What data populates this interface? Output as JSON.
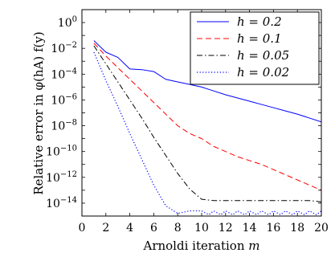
{
  "chart_data": {
    "type": "line",
    "xlabel": "Arnoldi iteration m",
    "ylabel": "Relative error in φ(hA) f(y)",
    "xlim": [
      0,
      20
    ],
    "ylim_exponent": [
      -15,
      1
    ],
    "yscale": "log",
    "xticks": [
      0,
      2,
      4,
      6,
      8,
      10,
      12,
      14,
      16,
      18,
      20
    ],
    "yticks": [
      -14,
      -12,
      -10,
      -8,
      -6,
      -4,
      -2,
      0
    ],
    "legend_position": "top-right",
    "grid": false,
    "series": [
      {
        "name": "h = 0.2",
        "color": "#0000ff",
        "dash": "solid",
        "x": [
          1,
          2,
          3,
          4,
          5,
          6,
          7,
          8,
          9,
          10,
          11,
          12,
          13,
          14,
          15,
          16,
          17,
          18,
          19,
          20
        ],
        "y_log10": [
          -1.4,
          -2.3,
          -2.7,
          -3.6,
          -3.65,
          -3.8,
          -4.4,
          -4.6,
          -4.8,
          -5.0,
          -5.3,
          -5.6,
          -5.85,
          -6.1,
          -6.35,
          -6.6,
          -6.85,
          -7.1,
          -7.4,
          -7.7
        ]
      },
      {
        "name": "h = 0.1",
        "color": "#ff0000",
        "dash": "dashed",
        "x": [
          1,
          2,
          3,
          4,
          5,
          6,
          7,
          8,
          9,
          10,
          11,
          12,
          13,
          14,
          15,
          16,
          17,
          18,
          19,
          20
        ],
        "y_log10": [
          -1.6,
          -2.6,
          -3.5,
          -4.4,
          -5.3,
          -6.2,
          -7.1,
          -8.0,
          -8.6,
          -9.0,
          -9.6,
          -10.0,
          -10.4,
          -10.7,
          -11.0,
          -11.4,
          -11.8,
          -12.2,
          -12.6,
          -13.0
        ]
      },
      {
        "name": "h = 0.05",
        "color": "#000000",
        "dash": "dashdot",
        "x": [
          1,
          2,
          3,
          4,
          5,
          6,
          7,
          8,
          9,
          10,
          11,
          12,
          13,
          14,
          15,
          16,
          17,
          18,
          19,
          20
        ],
        "y_log10": [
          -1.8,
          -3.2,
          -4.6,
          -6.0,
          -7.4,
          -8.9,
          -10.3,
          -11.7,
          -12.9,
          -13.7,
          -13.8,
          -13.8,
          -13.8,
          -13.8,
          -13.8,
          -13.8,
          -13.8,
          -13.8,
          -13.8,
          -13.9
        ]
      },
      {
        "name": "h = 0.02",
        "color": "#0000ff",
        "dash": "dotted",
        "x": [
          1,
          2,
          3,
          4,
          5,
          6,
          7,
          8,
          9,
          10,
          10.6,
          11,
          11.6,
          12,
          12.6,
          13,
          13.6,
          14,
          14.6,
          15,
          15.6,
          16,
          16.6,
          17,
          17.6,
          18,
          18.6,
          19,
          19.6,
          20
        ],
        "y_log10": [
          -2.3,
          -4.5,
          -6.5,
          -8.6,
          -10.6,
          -12.6,
          -14.2,
          -14.8,
          -14.6,
          -14.6,
          -14.9,
          -14.6,
          -14.9,
          -14.6,
          -14.9,
          -14.6,
          -14.9,
          -14.6,
          -14.9,
          -14.6,
          -14.9,
          -14.6,
          -14.9,
          -14.6,
          -14.9,
          -14.6,
          -14.9,
          -14.6,
          -14.9,
          -14.6
        ]
      }
    ]
  },
  "labels": {
    "xlabel_prefix": "Arnoldi iteration",
    "xlabel_var": "m",
    "ylabel_text": "Relative error in φ(hA) f(y)"
  }
}
